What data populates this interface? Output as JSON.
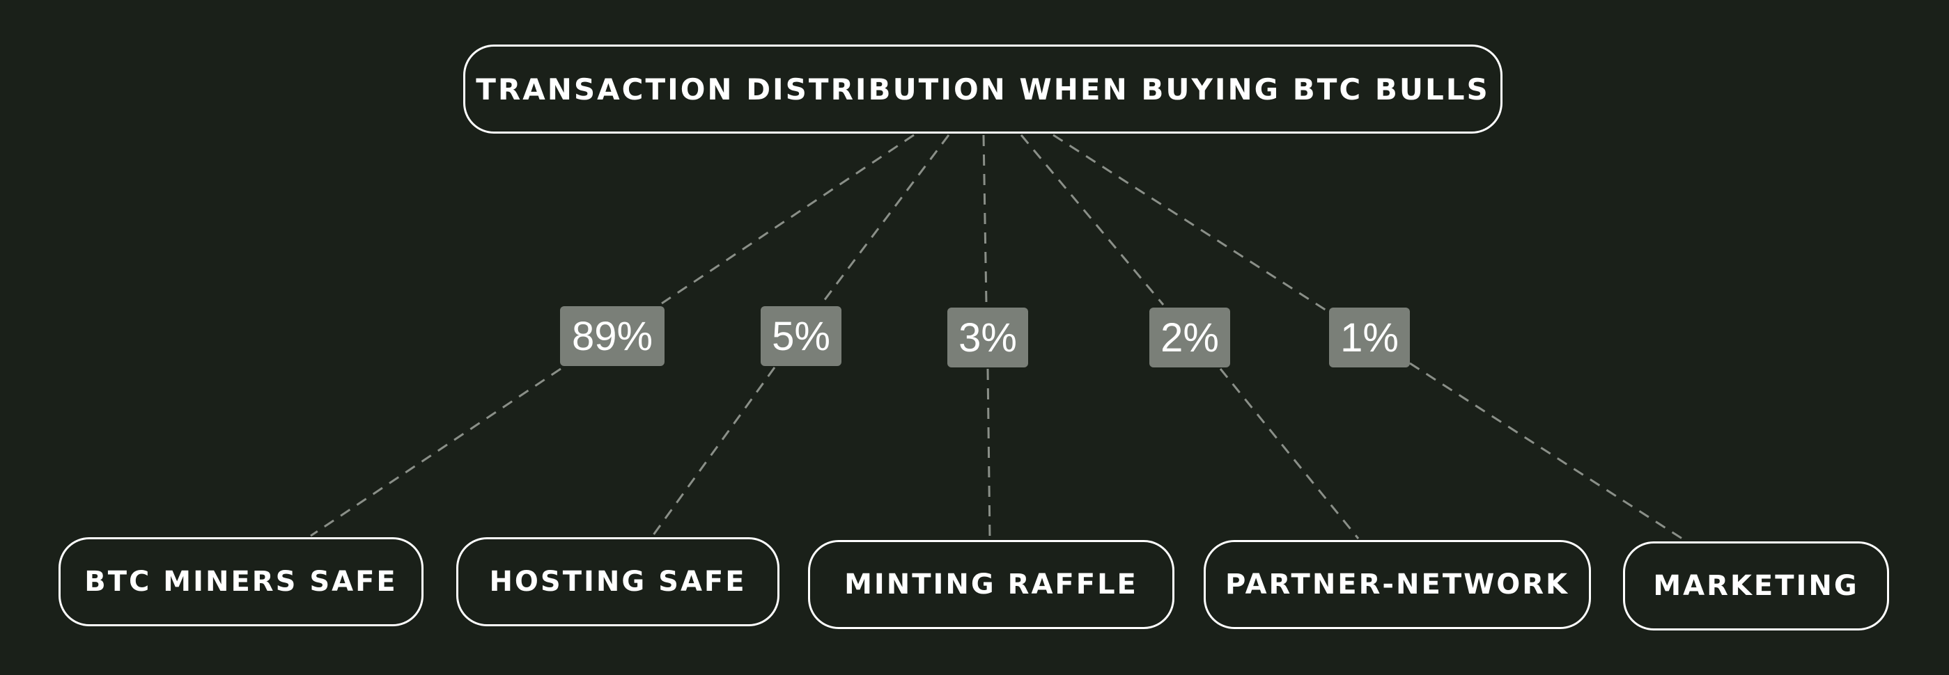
{
  "title": "TRANSACTION DISTRIBUTION WHEN BUYING BTC BULLS",
  "branches": [
    {
      "label": "BTC MINERS SAFE",
      "percent": "89%"
    },
    {
      "label": "HOSTING SAFE",
      "percent": "5%"
    },
    {
      "label": "MINTING RAFFLE",
      "percent": "3%"
    },
    {
      "label": "PARTNER-NETWORK",
      "percent": "2%"
    },
    {
      "label": "MARKETING",
      "percent": "1%"
    }
  ],
  "colors": {
    "background": "#1a2019",
    "node_border": "#ffffff",
    "label_box": "#7a7f78",
    "edge": "#8a8f88"
  }
}
